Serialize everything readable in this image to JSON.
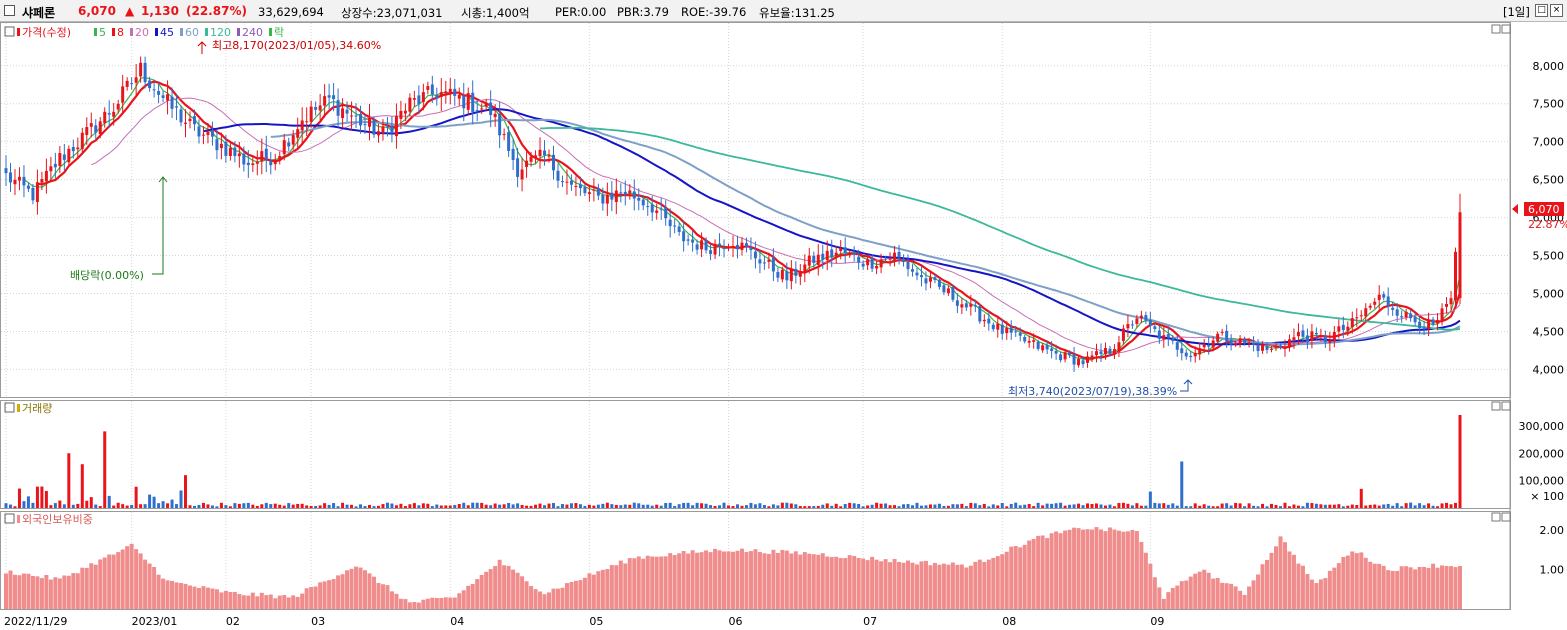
{
  "header": {
    "name": "샤페론",
    "price": "6,070",
    "change_arrow": "▲",
    "change": "1,130",
    "change_pct": "(22.87%)",
    "volume": "33,629,694",
    "listed": "상장수:23,071,031",
    "mcap": "시총:1,400억",
    "per": "PER:0.00",
    "pbr": "PBR:3.79",
    "roe": "ROE:-39.76",
    "float": "유보율:131.25",
    "period": "[1일]"
  },
  "colors": {
    "up": "#e8141a",
    "down": "#2f6fcb",
    "ma5": "#39b54a",
    "ma8": "#e8141a",
    "ma20": "#c86fb4",
    "ma45": "#1515c6",
    "ma60": "#7ea0c8",
    "ma120": "#3cb89a",
    "foreign": "#f08c8c"
  },
  "price_panel": {
    "legend": [
      {
        "label": "가격(수정)",
        "color": "#e8141a"
      },
      {
        "label": "5",
        "color": "#39b54a"
      },
      {
        "label": "8",
        "color": "#e8141a"
      },
      {
        "label": "20",
        "color": "#c86fb4"
      },
      {
        "label": "45",
        "color": "#1515c6"
      },
      {
        "label": "60",
        "color": "#7ea0c8"
      },
      {
        "label": "120",
        "color": "#3cb89a"
      },
      {
        "label": "240",
        "color": "#8e5ab4"
      },
      {
        "label": "락",
        "color": "#39b54a"
      }
    ],
    "annotations": {
      "high": "최고8,170(2023/01/05),34.60%",
      "low": "최저3,740(2023/07/19),38.39%",
      "dividend": "배당락(0.00%)"
    },
    "current_price_tag": "6,070",
    "current_pct_tag": "22.87%"
  },
  "volume_panel": {
    "legend": "거래량"
  },
  "foreign_panel": {
    "legend": "외국인보유비중"
  },
  "chart_data": {
    "type": "candlestick",
    "price_axis": {
      "ticks": [
        "8,000",
        "7,500",
        "7,000",
        "6,500",
        "6,000",
        "5,500",
        "5,000",
        "4,500",
        "4,000"
      ],
      "range": [
        3650,
        8550
      ]
    },
    "volume_axis": {
      "ticks": [
        "300,000",
        "200,000",
        "100,000",
        "× 100"
      ],
      "range": [
        0,
        380000
      ]
    },
    "foreign_axis": {
      "ticks": [
        "2.00",
        "1.00"
      ],
      "range": [
        0,
        2.4
      ]
    },
    "x_ticks": [
      "2022/11/29",
      "2023/01",
      "02",
      "03",
      "04",
      "05",
      "06",
      "07",
      "08",
      "09"
    ],
    "close_anchors": [
      [
        0,
        6550
      ],
      [
        6,
        6300
      ],
      [
        12,
        6780
      ],
      [
        18,
        7100
      ],
      [
        24,
        7450
      ],
      [
        30,
        7950
      ],
      [
        36,
        7500
      ],
      [
        42,
        7150
      ],
      [
        48,
        6950
      ],
      [
        54,
        6720
      ],
      [
        60,
        6820
      ],
      [
        66,
        7300
      ],
      [
        72,
        7550
      ],
      [
        78,
        7300
      ],
      [
        84,
        7100
      ],
      [
        90,
        7500
      ],
      [
        96,
        7650
      ],
      [
        102,
        7550
      ],
      [
        108,
        7400
      ],
      [
        114,
        6650
      ],
      [
        120,
        6800
      ],
      [
        126,
        6400
      ],
      [
        132,
        6250
      ],
      [
        138,
        6350
      ],
      [
        144,
        6150
      ],
      [
        150,
        5750
      ],
      [
        156,
        5600
      ],
      [
        162,
        5700
      ],
      [
        168,
        5450
      ],
      [
        174,
        5200
      ],
      [
        180,
        5450
      ],
      [
        186,
        5550
      ],
      [
        192,
        5400
      ],
      [
        198,
        5500
      ],
      [
        204,
        5200
      ],
      [
        210,
        5000
      ],
      [
        216,
        4750
      ],
      [
        222,
        4500
      ],
      [
        228,
        4350
      ],
      [
        234,
        4200
      ],
      [
        240,
        4100
      ],
      [
        246,
        4250
      ],
      [
        252,
        4700
      ],
      [
        258,
        4400
      ],
      [
        264,
        4200
      ],
      [
        270,
        4450
      ],
      [
        276,
        4350
      ],
      [
        282,
        4250
      ],
      [
        288,
        4450
      ],
      [
        294,
        4400
      ],
      [
        300,
        4600
      ],
      [
        306,
        4950
      ],
      [
        312,
        4700
      ],
      [
        318,
        4550
      ],
      [
        322,
        4900
      ],
      [
        324,
        6070
      ]
    ],
    "volume_spikes": [
      [
        14,
        200000
      ],
      [
        17,
        160000
      ],
      [
        22,
        280000
      ],
      [
        40,
        120000
      ],
      [
        255,
        60000
      ],
      [
        262,
        170000
      ],
      [
        302,
        70000
      ],
      [
        324,
        340000
      ]
    ],
    "foreign_anchors": [
      [
        0,
        0.95
      ],
      [
        12,
        0.75
      ],
      [
        28,
        1.6
      ],
      [
        36,
        0.7
      ],
      [
        50,
        0.4
      ],
      [
        64,
        0.3
      ],
      [
        78,
        1.1
      ],
      [
        90,
        0.15
      ],
      [
        100,
        0.3
      ],
      [
        110,
        1.2
      ],
      [
        120,
        0.4
      ],
      [
        140,
        1.3
      ],
      [
        160,
        1.5
      ],
      [
        180,
        1.4
      ],
      [
        200,
        1.2
      ],
      [
        215,
        1.1
      ],
      [
        230,
        1.8
      ],
      [
        240,
        2.05
      ],
      [
        252,
        1.95
      ],
      [
        258,
        0.3
      ],
      [
        266,
        1.0
      ],
      [
        276,
        0.4
      ],
      [
        284,
        1.8
      ],
      [
        292,
        0.6
      ],
      [
        300,
        1.5
      ],
      [
        308,
        1.0
      ],
      [
        318,
        1.1
      ],
      [
        324,
        1.1
      ]
    ]
  }
}
